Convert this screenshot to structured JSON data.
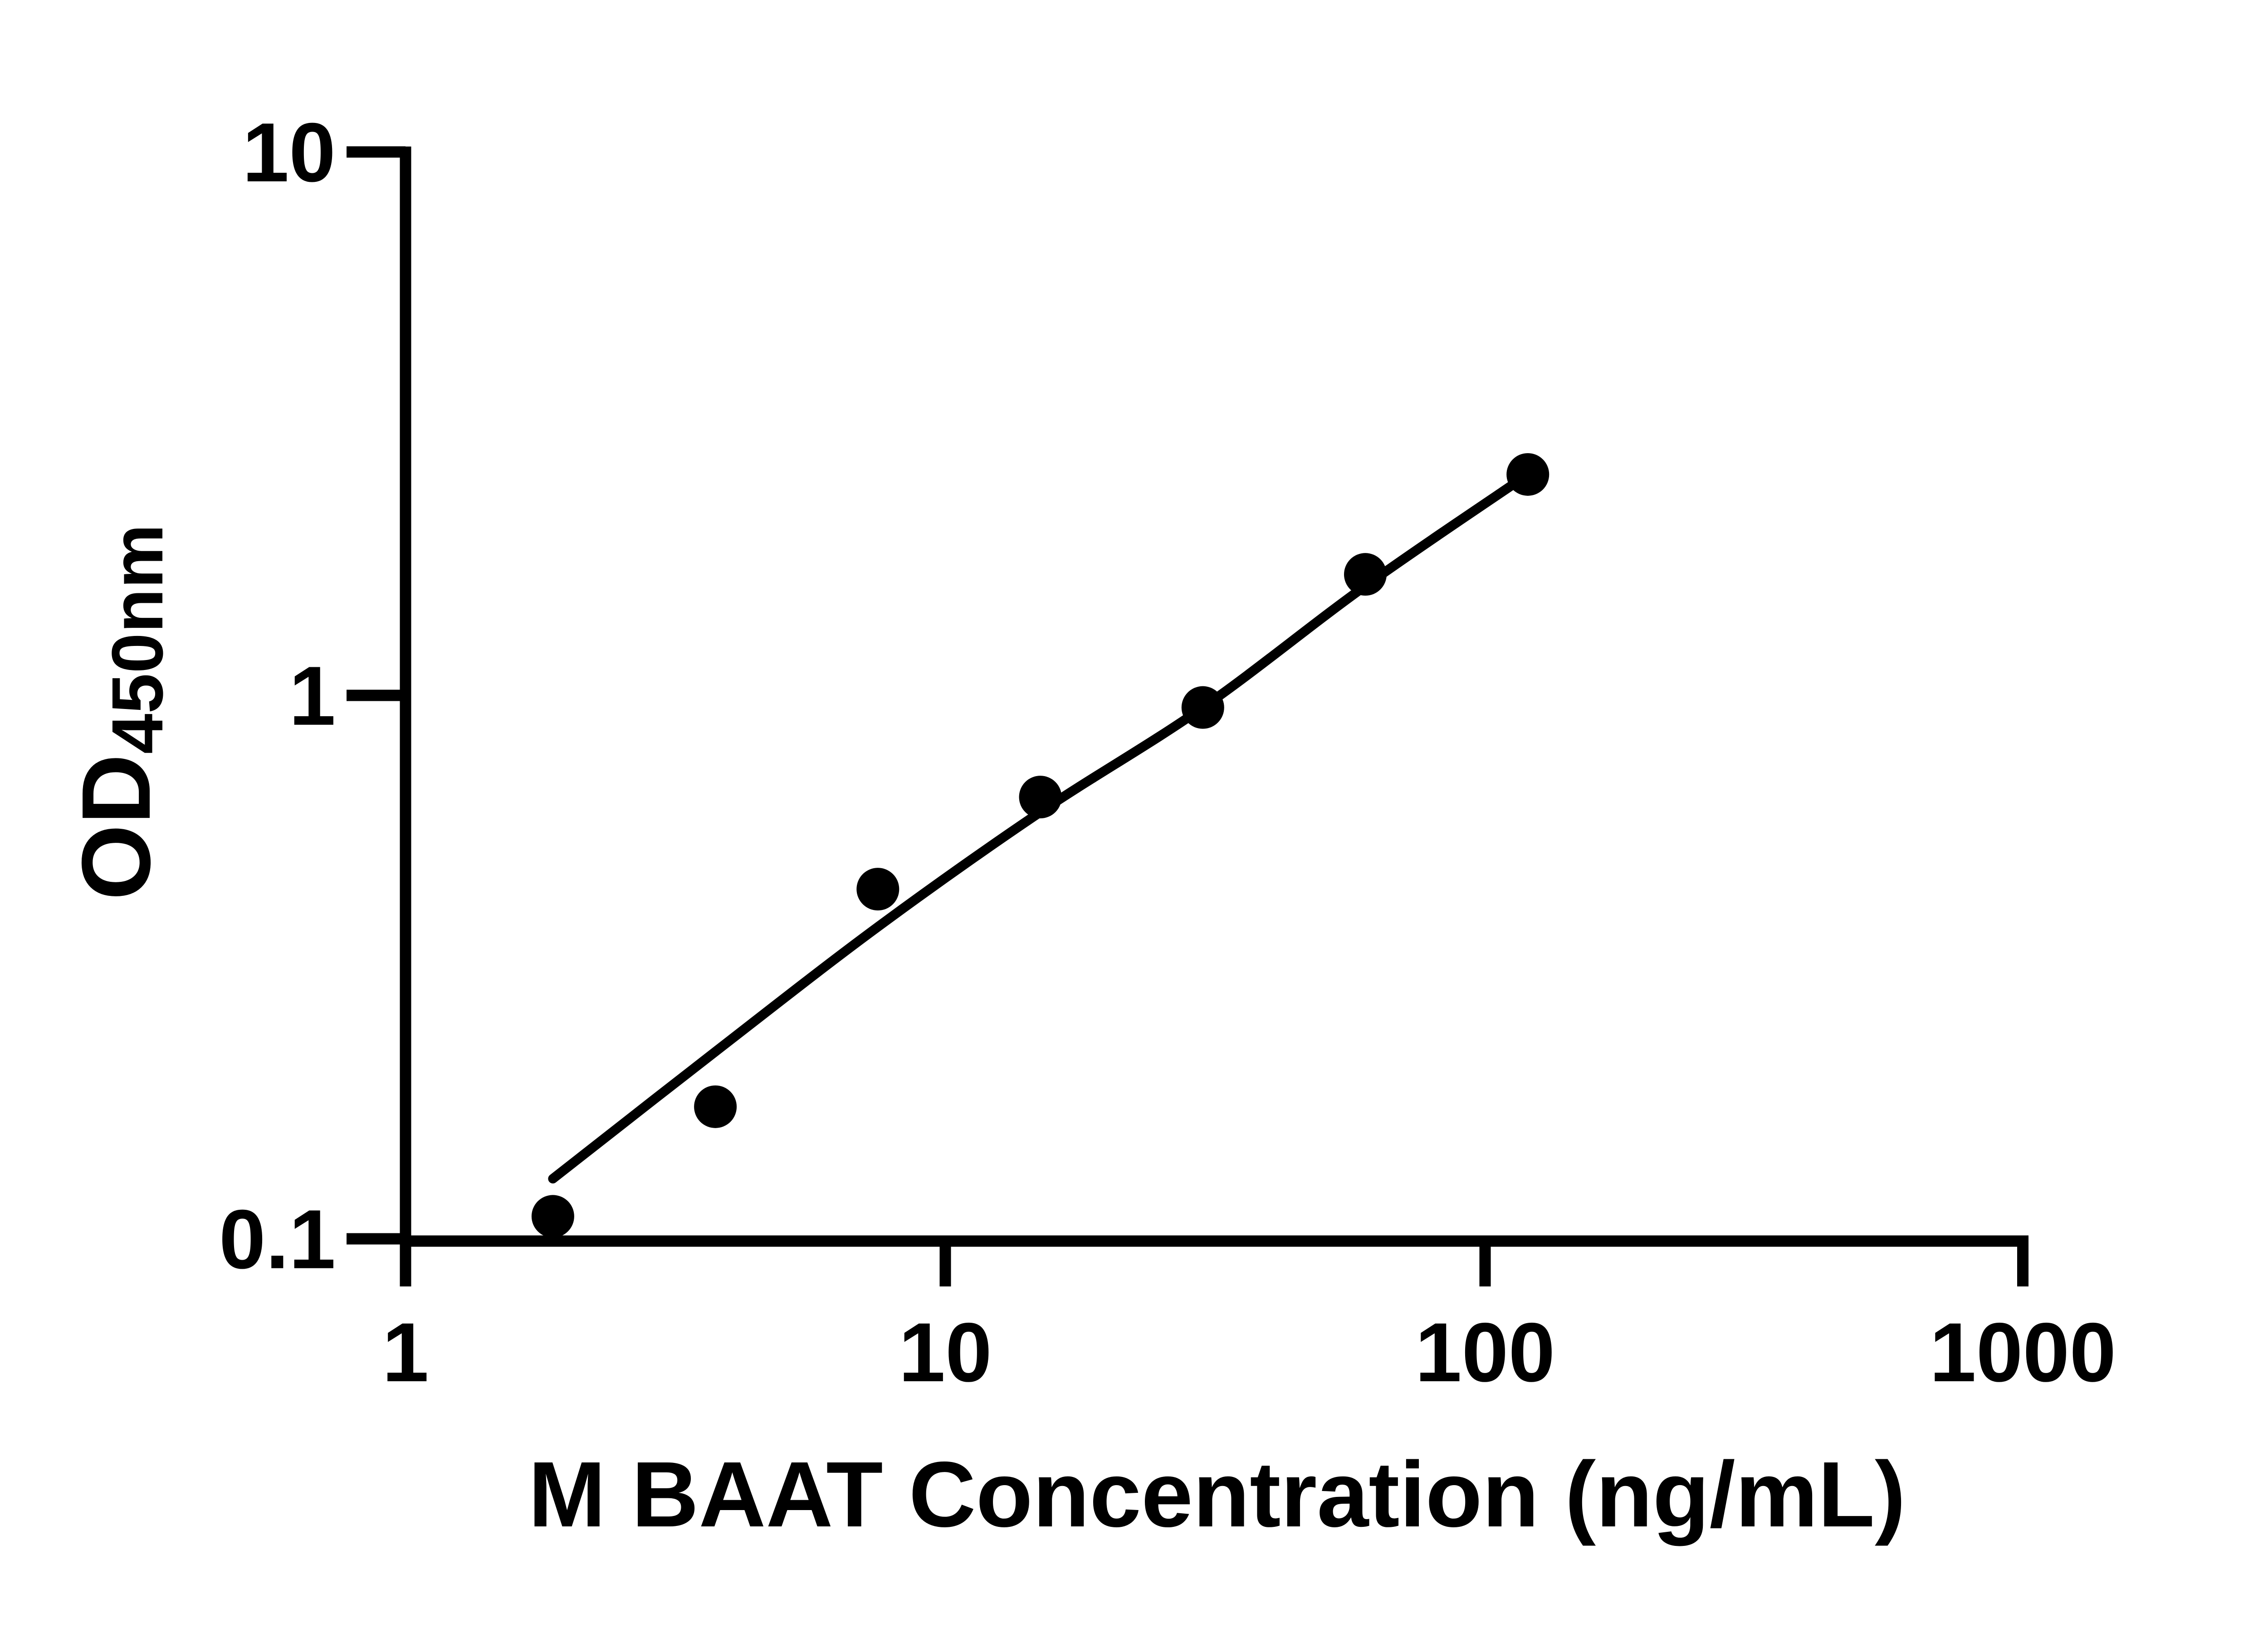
{
  "figure": {
    "background_color": "#ffffff",
    "foreground_color": "#000000"
  },
  "chart_data": {
    "type": "scatter",
    "title": "",
    "xlabel": "M BAAT Concentration (ng/mL)",
    "ylabel_main": "OD",
    "ylabel_sub": "450nm",
    "x_scale": "log",
    "y_scale": "log",
    "xlim": [
      1,
      1000
    ],
    "ylim": [
      0.1,
      10
    ],
    "grid": false,
    "legend": false,
    "x_ticks": [
      1,
      10,
      100,
      1000
    ],
    "x_tick_labels": [
      "1",
      "10",
      "100",
      "1000"
    ],
    "y_ticks": [
      0.1,
      1,
      10
    ],
    "y_tick_labels": [
      "0.1",
      "1",
      "10"
    ],
    "marker_color": "#000000",
    "line_color": "#000000",
    "points": [
      {
        "conc": 1.875,
        "od": 0.11
      },
      {
        "conc": 3.75,
        "od": 0.175
      },
      {
        "conc": 7.5,
        "od": 0.44
      },
      {
        "conc": 15,
        "od": 0.65
      },
      {
        "conc": 30,
        "od": 0.95
      },
      {
        "conc": 60,
        "od": 1.67
      },
      {
        "conc": 120,
        "od": 2.55
      }
    ],
    "fit_line": [
      {
        "conc": 1.875,
        "od": 0.129
      },
      {
        "conc": 3.75,
        "od": 0.221
      },
      {
        "conc": 7.5,
        "od": 0.375
      },
      {
        "conc": 15,
        "od": 0.61
      },
      {
        "conc": 30,
        "od": 0.95
      },
      {
        "conc": 60,
        "od": 1.59
      },
      {
        "conc": 120,
        "od": 2.55
      }
    ]
  }
}
